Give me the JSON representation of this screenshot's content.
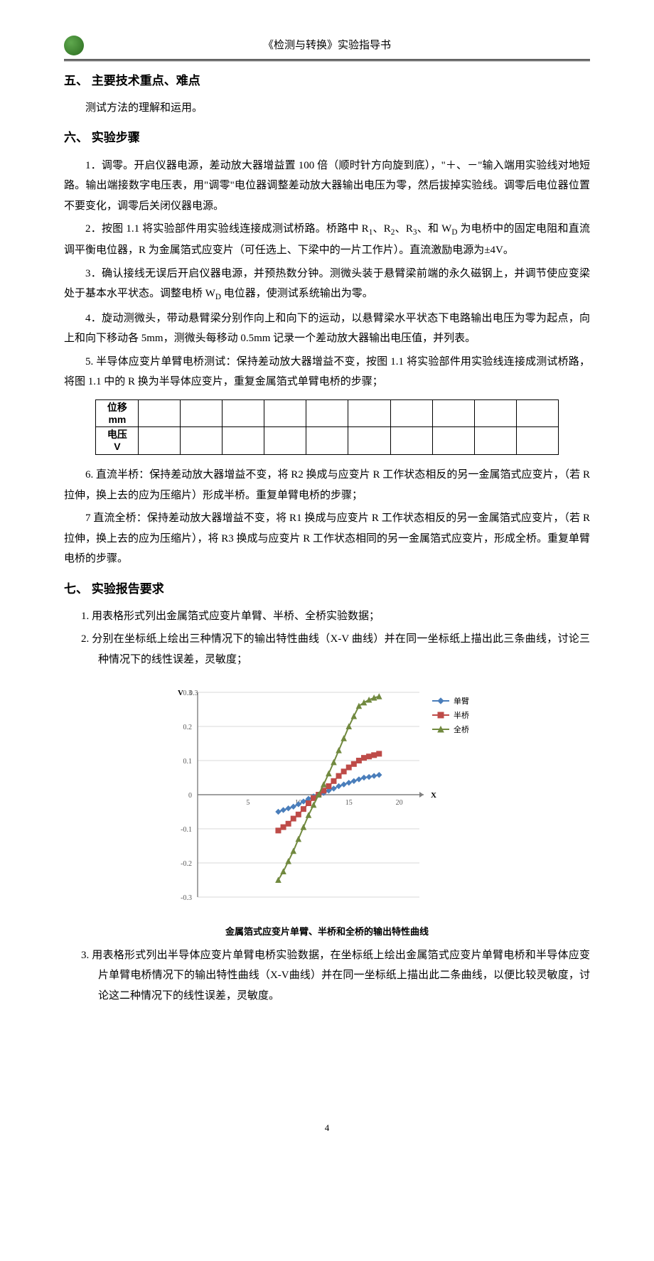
{
  "header": {
    "doc_title": "《检测与转换》实验指导书"
  },
  "section5": {
    "heading": "五、  主要技术重点、难点",
    "p1": "测试方法的理解和运用。"
  },
  "section6": {
    "heading": "六、  实验步骤",
    "p1": "1．调零。开启仪器电源，差动放大器增益置 100 倍（顺时针方向旋到底），\"＋、－\"输入端用实验线对地短路。输出端接数字电压表，用\"调零\"电位器调整差动放大器输出电压为零，然后拔掉实验线。调零后电位器位置不要变化，调零后关闭仪器电源。",
    "p2_pre": "2．按图 1.1 将实验部件用实验线连接成测试桥路。桥路中 R",
    "p2_mid1": "、R",
    "p2_mid2": "、R",
    "p2_mid3": "、和 W",
    "p2_after": " 为电桥中的固定电阻和直流调平衡电位器，R 为金属箔式应变片（可任选上、下梁中的一片工作片）。直流激励电源为±4V。",
    "sub1": "1",
    "sub2": "2",
    "sub3": "3",
    "subD": "D",
    "p3_pre": "3．确认接线无误后开启仪器电源，并预热数分钟。测微头装于悬臂梁前端的永久磁钢上，并调节使应变梁处于基本水平状态。调整电桥 W",
    "p3_after": " 电位器，使测试系统输出为零。",
    "p4": "4．旋动测微头，带动悬臂梁分别作向上和向下的运动，以悬臂梁水平状态下电路输出电压为零为起点，向上和向下移动各 5mm，测微头每移动 0.5mm 记录一个差动放大器输出电压值，并列表。",
    "p5": "5. 半导体应变片单臂电桥测试：保持差动放大器增益不变，按图 1.1 将实验部件用实验线连接成测试桥路，将图 1.1 中的 R 换为半导体应变片，重复金属箔式单臂电桥的步骤；",
    "p6": "6. 直流半桥：保持差动放大器增益不变，将 R2 换成与应变片 R 工作状态相反的另一金属箔式应变片，（若 R 拉伸，换上去的应为压缩片）形成半桥。重复单臂电桥的步骤；",
    "p7": "7 直流全桥：保持差动放大器增益不变，将 R1 换成与应变片 R 工作状态相反的另一金属箔式应变片，（若 R 拉伸，换上去的应为压缩片），将 R3 换成与应变片 R 工作状态相同的另一金属箔式应变片，形成全桥。重复单臂电桥的步骤。"
  },
  "table": {
    "row1_label_a": "位移",
    "row1_label_b": "mm",
    "row2_label_a": "电压",
    "row2_label_b": "V",
    "cols": 10
  },
  "section7": {
    "heading": "七、  实验报告要求",
    "item1": "1.  用表格形式列出金属箔式应变片单臂、半桥、全桥实验数据；",
    "item2": "2.  分别在坐标纸上绘出三种情况下的输出特性曲线（X-V 曲线）并在同一坐标纸上描出此三条曲线，讨论三种情况下的线性误差，灵敏度；",
    "item3": "3.  用表格形式列出半导体应变片单臂电桥实验数据，在坐标纸上绘出金属箔式应变片单臂电桥和半导体应变片单臂电桥情况下的输出特性曲线（X-V曲线）并在同一坐标纸上描出此二条曲线，以便比较灵敏度，讨论这二种情况下的线性误差，灵敏度。"
  },
  "chart": {
    "type": "line-scatter",
    "y_label": "V",
    "y_label_value": "0.3",
    "x_label": "X",
    "xlim": [
      0,
      22
    ],
    "ylim": [
      -0.3,
      0.3
    ],
    "xticks": [
      0,
      5,
      10,
      15,
      20
    ],
    "yticks": [
      -0.3,
      -0.2,
      -0.1,
      0,
      0.1,
      0.2,
      0.3
    ],
    "background_color": "#ffffff",
    "grid_color": "#d9d9d9",
    "axis_color": "#808080",
    "tick_fontsize": 10,
    "legend_fontsize": 11,
    "legend": [
      {
        "label": "单臂",
        "color": "#4a7ebb",
        "marker": "diamond"
      },
      {
        "label": "半桥",
        "color": "#be4b48",
        "marker": "square"
      },
      {
        "label": "全桥",
        "color": "#71893f",
        "marker": "triangle"
      }
    ],
    "series": {
      "single": {
        "color": "#4a7ebb",
        "marker": "diamond",
        "x": [
          8,
          8.5,
          9,
          9.5,
          10,
          10.5,
          11,
          11.5,
          12,
          12.5,
          13,
          13.5,
          14,
          14.5,
          15,
          15.5,
          16,
          16.5,
          17,
          17.5,
          18
        ],
        "y": [
          -0.05,
          -0.045,
          -0.04,
          -0.035,
          -0.028,
          -0.02,
          -0.012,
          -0.005,
          0.0,
          0.005,
          0.012,
          0.018,
          0.025,
          0.03,
          0.035,
          0.04,
          0.045,
          0.05,
          0.052,
          0.055,
          0.058
        ]
      },
      "half": {
        "color": "#be4b48",
        "marker": "square",
        "x": [
          8,
          8.5,
          9,
          9.5,
          10,
          10.5,
          11,
          11.5,
          12,
          12.5,
          13,
          13.5,
          14,
          14.5,
          15,
          15.5,
          16,
          16.5,
          17,
          17.5,
          18
        ],
        "y": [
          -0.105,
          -0.095,
          -0.085,
          -0.07,
          -0.058,
          -0.042,
          -0.025,
          -0.01,
          0.0,
          0.012,
          0.025,
          0.04,
          0.055,
          0.068,
          0.08,
          0.09,
          0.1,
          0.108,
          0.112,
          0.116,
          0.12
        ]
      },
      "full": {
        "color": "#71893f",
        "marker": "triangle",
        "x": [
          8,
          8.5,
          9,
          9.5,
          10,
          10.5,
          11,
          11.5,
          12,
          12.5,
          13,
          13.5,
          14,
          14.5,
          15,
          15.5,
          16,
          16.5,
          17,
          17.5,
          18
        ],
        "y": [
          -0.25,
          -0.225,
          -0.195,
          -0.165,
          -0.13,
          -0.095,
          -0.06,
          -0.03,
          0.0,
          0.03,
          0.062,
          0.095,
          0.13,
          0.165,
          0.2,
          0.23,
          0.26,
          0.27,
          0.278,
          0.284,
          0.288
        ]
      }
    },
    "caption": "金属箔式应变片单臂、半桥和全桥的输出特性曲线"
  },
  "page_number": "4"
}
